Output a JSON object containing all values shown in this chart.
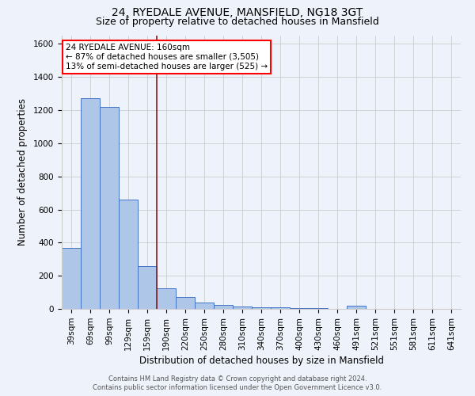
{
  "title": "24, RYEDALE AVENUE, MANSFIELD, NG18 3GT",
  "subtitle": "Size of property relative to detached houses in Mansfield",
  "xlabel": "Distribution of detached houses by size in Mansfield",
  "ylabel": "Number of detached properties",
  "categories": [
    "39sqm",
    "69sqm",
    "99sqm",
    "129sqm",
    "159sqm",
    "190sqm",
    "220sqm",
    "250sqm",
    "280sqm",
    "310sqm",
    "340sqm",
    "370sqm",
    "400sqm",
    "430sqm",
    "460sqm",
    "491sqm",
    "521sqm",
    "551sqm",
    "581sqm",
    "611sqm",
    "641sqm"
  ],
  "values": [
    370,
    1270,
    1220,
    660,
    260,
    125,
    70,
    38,
    25,
    15,
    10,
    8,
    5,
    3,
    0,
    18,
    0,
    0,
    0,
    0,
    0
  ],
  "bar_color": "#aec6e8",
  "bar_edge_color": "#4472c4",
  "vline_x": 4.5,
  "vline_color": "#8b1a1a",
  "annotation_line1": "24 RYEDALE AVENUE: 160sqm",
  "annotation_line2": "← 87% of detached houses are smaller (3,505)",
  "annotation_line3": "13% of semi-detached houses are larger (525) →",
  "annotation_box_color": "white",
  "annotation_box_edge_color": "red",
  "footer_line1": "Contains HM Land Registry data © Crown copyright and database right 2024.",
  "footer_line2": "Contains public sector information licensed under the Open Government Licence v3.0.",
  "ylim": [
    0,
    1650
  ],
  "yticks": [
    0,
    200,
    400,
    600,
    800,
    1000,
    1200,
    1400,
    1600
  ],
  "background_color": "#eef2fb",
  "grid_color": "#cccccc",
  "title_fontsize": 10,
  "subtitle_fontsize": 9,
  "axis_label_fontsize": 8.5,
  "tick_fontsize": 7.5,
  "annotation_fontsize": 7.5,
  "footer_fontsize": 6
}
